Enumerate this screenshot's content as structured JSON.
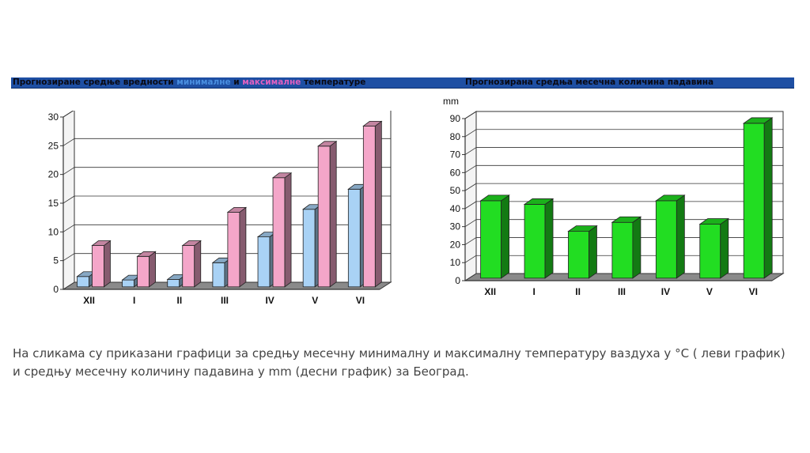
{
  "banner": {
    "left_title_pre": "Прогнозиране средње вредности",
    "left_title_min": "минималне",
    "left_title_and": "и",
    "left_title_max": "максималне",
    "left_title_post": "температуре",
    "right_title": "Прогнозирана средња месечна количина падавина"
  },
  "caption": "На сликама су приказани графици за средњу месечну минималну и максималну температуру ваздуха у °C ( леви график) и средњу месечну количину падавина у mm (десни график) за Београд.",
  "colors": {
    "banner": "#1e4fa3",
    "min_series": "#a9d2f5",
    "max_series": "#f4a6c9",
    "precip_series": "#22dd22"
  },
  "chart_data": [
    {
      "type": "bar",
      "categories": [
        "XII",
        "I",
        "II",
        "III",
        "IV",
        "V",
        "VI"
      ],
      "series": [
        {
          "name": "минималне",
          "values": [
            1.8,
            1.2,
            1.3,
            4.2,
            8.7,
            13.5,
            17.0
          ]
        },
        {
          "name": "максималне",
          "values": [
            7.2,
            5.3,
            7.2,
            13.0,
            19.0,
            24.5,
            28.0
          ]
        }
      ],
      "ylim": [
        0,
        30
      ],
      "yticks": [
        0,
        5,
        10,
        15,
        20,
        25,
        30
      ],
      "xlabel": "",
      "ylabel": "",
      "grid": true
    },
    {
      "type": "bar",
      "categories": [
        "XII",
        "I",
        "II",
        "III",
        "IV",
        "V",
        "VI"
      ],
      "series": [
        {
          "name": "",
          "values": [
            43,
            41,
            26,
            31,
            43,
            30,
            86
          ]
        }
      ],
      "ylim": [
        0,
        90
      ],
      "yticks": [
        0,
        10,
        20,
        30,
        40,
        50,
        60,
        70,
        80,
        90
      ],
      "xlabel": "",
      "ylabel": "mm",
      "grid": true
    }
  ]
}
